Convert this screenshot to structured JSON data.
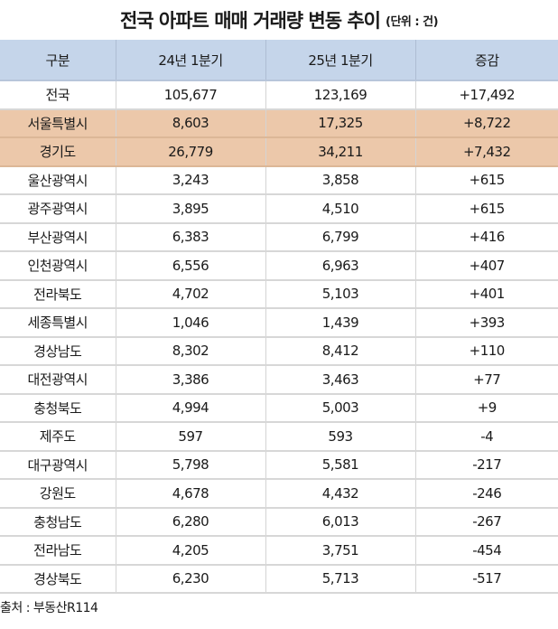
{
  "header": {
    "title": "전국 아파트 매매 거래량 변동 추이",
    "unit": "(단위 : 건)"
  },
  "table": {
    "columns": [
      "구분",
      "24년 1분기",
      "25년 1분기",
      "증감"
    ],
    "rows": [
      {
        "region": "전국",
        "q1_2024": "105,677",
        "q1_2025": "123,169",
        "change": "+17,492",
        "highlight": false
      },
      {
        "region": "서울특별시",
        "q1_2024": "8,603",
        "q1_2025": "17,325",
        "change": "+8,722",
        "highlight": true
      },
      {
        "region": "경기도",
        "q1_2024": "26,779",
        "q1_2025": "34,211",
        "change": "+7,432",
        "highlight": true
      },
      {
        "region": "울산광역시",
        "q1_2024": "3,243",
        "q1_2025": "3,858",
        "change": "+615",
        "highlight": false
      },
      {
        "region": "광주광역시",
        "q1_2024": "3,895",
        "q1_2025": "4,510",
        "change": "+615",
        "highlight": false
      },
      {
        "region": "부산광역시",
        "q1_2024": "6,383",
        "q1_2025": "6,799",
        "change": "+416",
        "highlight": false
      },
      {
        "region": "인천광역시",
        "q1_2024": "6,556",
        "q1_2025": "6,963",
        "change": "+407",
        "highlight": false
      },
      {
        "region": "전라북도",
        "q1_2024": "4,702",
        "q1_2025": "5,103",
        "change": "+401",
        "highlight": false
      },
      {
        "region": "세종특별시",
        "q1_2024": "1,046",
        "q1_2025": "1,439",
        "change": "+393",
        "highlight": false
      },
      {
        "region": "경상남도",
        "q1_2024": "8,302",
        "q1_2025": "8,412",
        "change": "+110",
        "highlight": false
      },
      {
        "region": "대전광역시",
        "q1_2024": "3,386",
        "q1_2025": "3,463",
        "change": "+77",
        "highlight": false
      },
      {
        "region": "충청북도",
        "q1_2024": "4,994",
        "q1_2025": "5,003",
        "change": "+9",
        "highlight": false
      },
      {
        "region": "제주도",
        "q1_2024": "597",
        "q1_2025": "593",
        "change": "-4",
        "highlight": false
      },
      {
        "region": "대구광역시",
        "q1_2024": "5,798",
        "q1_2025": "5,581",
        "change": "-217",
        "highlight": false
      },
      {
        "region": "강원도",
        "q1_2024": "4,678",
        "q1_2025": "4,432",
        "change": "-246",
        "highlight": false
      },
      {
        "region": "충청남도",
        "q1_2024": "6,280",
        "q1_2025": "6,013",
        "change": "-267",
        "highlight": false
      },
      {
        "region": "전라남도",
        "q1_2024": "4,205",
        "q1_2025": "3,751",
        "change": "-454",
        "highlight": false
      },
      {
        "region": "경상북도",
        "q1_2024": "6,230",
        "q1_2025": "5,713",
        "change": "-517",
        "highlight": false
      }
    ]
  },
  "footer": {
    "source": "출처 : 부동산R114"
  },
  "colors": {
    "header_bg": "#c5d5ea",
    "highlight_bg": "#ecc8aa",
    "border": "#d7d7d7"
  }
}
